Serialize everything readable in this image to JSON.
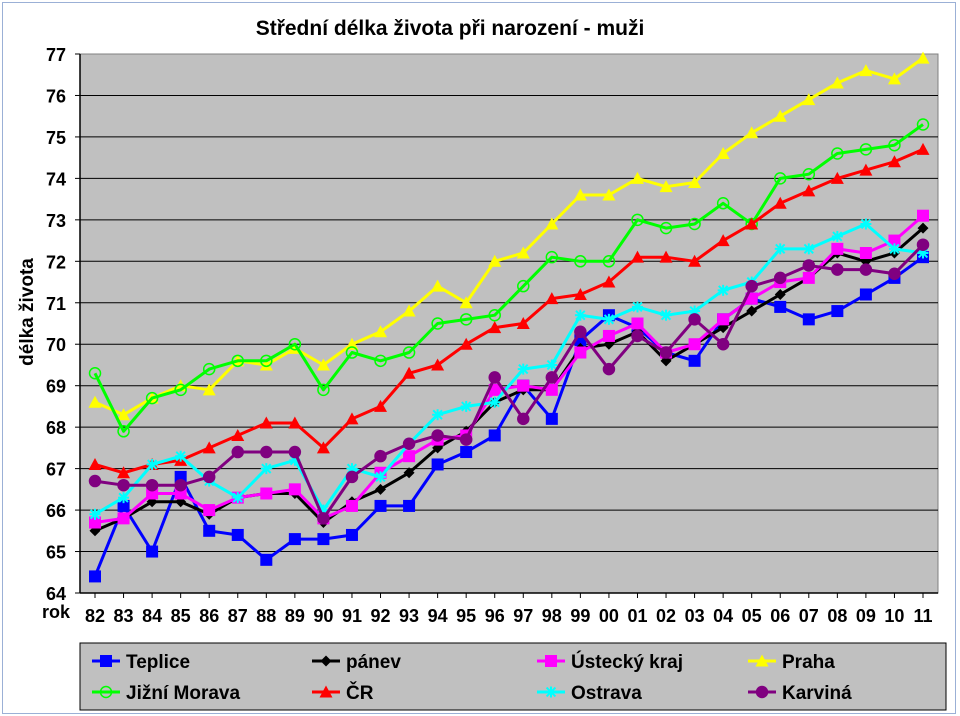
{
  "chart_data": {
    "type": "line",
    "title": "Střední délka života při narození - muži",
    "ylabel": "délka života",
    "xlabel": "rok",
    "ylim": [
      64,
      77
    ],
    "yticks": [
      64,
      65,
      66,
      67,
      68,
      69,
      70,
      71,
      72,
      73,
      74,
      75,
      76,
      77
    ],
    "categories": [
      "82",
      "83",
      "84",
      "85",
      "86",
      "87",
      "88",
      "89",
      "90",
      "91",
      "92",
      "93",
      "94",
      "95",
      "96",
      "97",
      "98",
      "99",
      "00",
      "01",
      "02",
      "03",
      "04",
      "05",
      "06",
      "07",
      "08",
      "09",
      "10",
      "11"
    ],
    "grid": true,
    "plot_background": "#c0c0c0",
    "legend_position": "bottom",
    "series": [
      {
        "name": "Teplice",
        "color": "#0000ff",
        "marker": "square",
        "values": [
          64.4,
          66.1,
          65.0,
          66.8,
          65.5,
          65.4,
          64.8,
          65.3,
          65.3,
          65.4,
          66.1,
          66.1,
          67.1,
          67.4,
          67.8,
          69.0,
          68.2,
          70.1,
          70.7,
          70.4,
          69.8,
          69.6,
          70.6,
          71.1,
          70.9,
          70.6,
          70.8,
          71.2,
          71.6,
          72.1
        ]
      },
      {
        "name": "pánev",
        "color": "#000000",
        "marker": "diamond",
        "values": [
          65.5,
          65.8,
          66.2,
          66.2,
          65.9,
          66.3,
          66.4,
          66.4,
          65.7,
          66.2,
          66.5,
          66.9,
          67.5,
          67.9,
          68.6,
          68.9,
          68.9,
          69.9,
          70.0,
          70.3,
          69.6,
          70.0,
          70.4,
          70.8,
          71.2,
          71.6,
          72.2,
          72.0,
          72.2,
          72.8
        ]
      },
      {
        "name": "Ústecký kraj",
        "color": "#ff00ff",
        "marker": "square",
        "values": [
          65.7,
          65.8,
          66.4,
          66.4,
          66.0,
          66.3,
          66.4,
          66.5,
          65.8,
          66.1,
          66.9,
          67.3,
          67.7,
          67.8,
          68.9,
          69.0,
          68.9,
          69.8,
          70.2,
          70.5,
          69.8,
          70.0,
          70.6,
          71.1,
          71.5,
          71.6,
          72.3,
          72.2,
          72.5,
          73.1
        ]
      },
      {
        "name": "Praha",
        "color": "#ffff00",
        "marker": "triangle",
        "values": [
          68.6,
          68.3,
          68.7,
          69.0,
          68.9,
          69.6,
          69.5,
          69.9,
          69.5,
          70.0,
          70.3,
          70.8,
          71.4,
          71.0,
          72.0,
          72.2,
          72.9,
          73.6,
          73.6,
          74.0,
          73.8,
          73.9,
          74.6,
          75.1,
          75.5,
          75.9,
          76.3,
          76.6,
          76.4,
          76.9
        ]
      },
      {
        "name": "Jižní Morava",
        "color": "#00ff00",
        "marker": "circle",
        "values": [
          69.3,
          67.9,
          68.7,
          68.9,
          69.4,
          69.6,
          69.6,
          70.0,
          68.9,
          69.8,
          69.6,
          69.8,
          70.5,
          70.6,
          70.7,
          71.4,
          72.1,
          72.0,
          72.0,
          73.0,
          72.8,
          72.9,
          73.4,
          72.9,
          74.0,
          74.1,
          74.6,
          74.7,
          74.8,
          75.3
        ]
      },
      {
        "name": "ČR",
        "color": "#ff0000",
        "marker": "triangle",
        "values": [
          67.1,
          66.9,
          67.1,
          67.2,
          67.5,
          67.8,
          68.1,
          68.1,
          67.5,
          68.2,
          68.5,
          69.3,
          69.5,
          70.0,
          70.4,
          70.5,
          71.1,
          71.2,
          71.5,
          72.1,
          72.1,
          72.0,
          72.5,
          72.9,
          73.4,
          73.7,
          74.0,
          74.2,
          74.4,
          74.7
        ]
      },
      {
        "name": "Ostrava",
        "color": "#00ffff",
        "marker": "star",
        "values": [
          65.9,
          66.3,
          67.1,
          67.3,
          66.7,
          66.3,
          67.0,
          67.2,
          66.0,
          67.0,
          66.8,
          67.6,
          68.3,
          68.5,
          68.6,
          69.4,
          69.5,
          70.7,
          70.6,
          70.9,
          70.7,
          70.8,
          71.3,
          71.5,
          72.3,
          72.3,
          72.6,
          72.9,
          72.3,
          72.2
        ]
      },
      {
        "name": "Karviná",
        "color": "#800080",
        "marker": "circle",
        "values": [
          66.7,
          66.6,
          66.6,
          66.6,
          66.8,
          67.4,
          67.4,
          67.4,
          65.8,
          66.8,
          67.3,
          67.6,
          67.8,
          67.7,
          69.2,
          68.2,
          69.2,
          70.3,
          69.4,
          70.2,
          69.8,
          70.6,
          70.0,
          71.4,
          71.6,
          71.9,
          71.8,
          71.8,
          71.7,
          72.4
        ]
      }
    ]
  }
}
